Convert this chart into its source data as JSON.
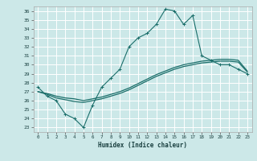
{
  "xlabel": "Humidex (Indice chaleur)",
  "xlim": [
    -0.5,
    23.5
  ],
  "ylim": [
    22.5,
    36.5
  ],
  "xticks": [
    0,
    1,
    2,
    3,
    4,
    5,
    6,
    7,
    8,
    9,
    10,
    11,
    12,
    13,
    14,
    15,
    16,
    17,
    18,
    19,
    20,
    21,
    22,
    23
  ],
  "yticks": [
    23,
    24,
    25,
    26,
    27,
    28,
    29,
    30,
    31,
    32,
    33,
    34,
    35,
    36
  ],
  "bg_color": "#cce8e8",
  "line_color": "#1a6e6a",
  "grid_color": "#ffffff",
  "lines": [
    {
      "x": [
        0,
        1,
        2,
        3,
        4,
        5,
        6,
        7,
        8,
        9,
        10,
        11,
        12,
        13,
        14,
        15,
        16,
        17,
        18,
        19,
        20,
        21,
        22,
        23
      ],
      "y": [
        27.5,
        26.5,
        26.0,
        24.5,
        24.0,
        23.0,
        25.5,
        27.5,
        28.5,
        29.5,
        32.0,
        33.0,
        33.5,
        34.5,
        36.2,
        36.0,
        34.5,
        35.5,
        31.0,
        30.5,
        30.0,
        30.0,
        29.5,
        29.0
      ],
      "marker": "+"
    },
    {
      "x": [
        0,
        1,
        2,
        3,
        4,
        5,
        6,
        7,
        8,
        9,
        10,
        11,
        12,
        13,
        14,
        15,
        16,
        17,
        18,
        19,
        20,
        21,
        22,
        23
      ],
      "y": [
        27.0,
        26.7,
        26.3,
        26.1,
        25.9,
        25.8,
        26.0,
        26.2,
        26.5,
        26.8,
        27.2,
        27.7,
        28.2,
        28.7,
        29.1,
        29.5,
        29.8,
        30.0,
        30.2,
        30.3,
        30.4,
        30.4,
        30.3,
        29.2
      ],
      "marker": null,
      "lw": 0.9
    },
    {
      "x": [
        0,
        1,
        2,
        3,
        4,
        5,
        6,
        7,
        8,
        9,
        10,
        11,
        12,
        13,
        14,
        15,
        16,
        17,
        18,
        19,
        20,
        21,
        22,
        23
      ],
      "y": [
        27.0,
        26.8,
        26.5,
        26.3,
        26.2,
        26.0,
        26.2,
        26.4,
        26.7,
        27.0,
        27.4,
        27.9,
        28.4,
        28.9,
        29.3,
        29.7,
        30.0,
        30.2,
        30.4,
        30.5,
        30.6,
        30.6,
        30.5,
        29.3
      ],
      "marker": null,
      "lw": 0.9
    }
  ]
}
